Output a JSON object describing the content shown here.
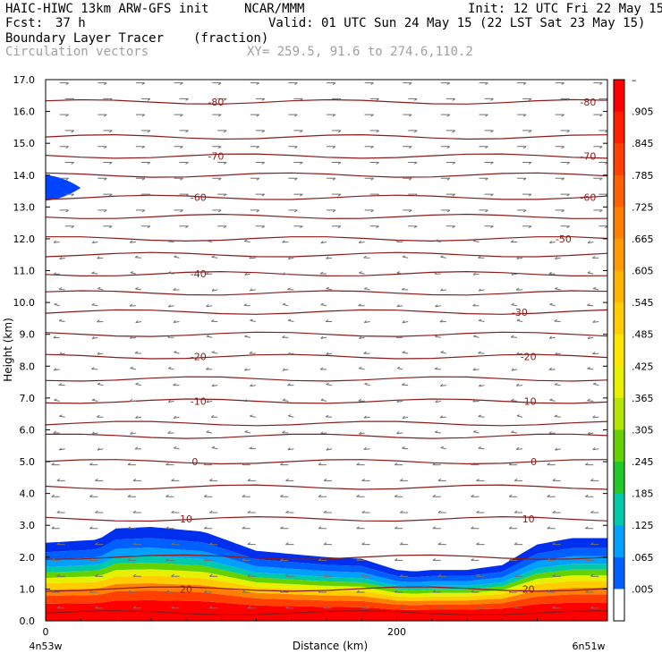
{
  "header": {
    "model": "HAIC-HIWC 13km ARW-GFS init",
    "org": "NCAR/MMM",
    "init": "Init: 12 UTC Fri 22 May 15",
    "fcst_label": "Fcst:",
    "fcst_value": "37 h",
    "valid": "Valid: 01 UTC Sun 24 May 15 (22 LST Sat 23 May 15)",
    "field": "Boundary Layer Tracer",
    "units": "(fraction)",
    "vectors": "Circulation vectors",
    "xy": "XY= 259.5, 91.6 to 274.6,110.2"
  },
  "chart_data": {
    "type": "area",
    "title": "Boundary Layer Tracer",
    "xlabel": "Distance (km)",
    "ylabel": "Height (km)",
    "ylim": [
      0,
      17
    ],
    "xlim": [
      0,
      320
    ],
    "y_ticks": [
      "0.0",
      "1.0",
      "2.0",
      "3.0",
      "4.0",
      "5.0",
      "6.0",
      "7.0",
      "8.0",
      "9.0",
      "10.0",
      "11.0",
      "12.0",
      "13.0",
      "14.0",
      "15.0",
      "16.0",
      "17.0"
    ],
    "x_ticks": [
      {
        "value": 0,
        "label": "0"
      },
      {
        "value": 200,
        "label": "200"
      }
    ],
    "x_end_labels": {
      "left": "4n53w",
      "right": "6n51w"
    },
    "tracer_top": {
      "x": [
        0,
        30,
        40,
        60,
        90,
        100,
        120,
        140,
        160,
        180,
        200,
        210,
        220,
        240,
        260,
        280,
        300,
        320
      ],
      "top": [
        2.45,
        2.55,
        2.9,
        2.95,
        2.8,
        2.6,
        2.2,
        2.1,
        2.0,
        1.95,
        1.6,
        1.55,
        1.6,
        1.6,
        1.75,
        2.4,
        2.6,
        2.6
      ]
    },
    "tracer_blob": {
      "x_range": [
        0,
        20
      ],
      "y_center": 13.6,
      "half_height": 0.4
    },
    "colorbar": {
      "labels": [
        "–",
        ".905",
        ".845",
        ".785",
        ".725",
        ".665",
        ".605",
        ".545",
        ".485",
        ".425",
        ".365",
        ".305",
        ".245",
        ".185",
        ".125",
        ".065",
        ".005"
      ],
      "colors": [
        "#ff0000",
        "#ff2000",
        "#ff4000",
        "#ff6000",
        "#ff8000",
        "#ff9a00",
        "#ffb400",
        "#ffcc00",
        "#ffe600",
        "#e6f000",
        "#b4e600",
        "#64d200",
        "#20c828",
        "#00c8aa",
        "#00a0ff",
        "#0060ff",
        "#ffffff"
      ]
    },
    "contours": {
      "color": "#8b1a1a",
      "labeled": [
        {
          "value": "-80",
          "y": 16.3,
          "label_x": [
            97,
            309
          ]
        },
        {
          "value": "-70",
          "y": 14.6,
          "label_x": [
            97,
            309
          ]
        },
        {
          "value": "-60",
          "y": 13.3,
          "label_x": [
            87,
            309
          ]
        },
        {
          "value": "-50",
          "y": 12.0,
          "label_x": [
            295
          ]
        },
        {
          "value": "-40",
          "y": 10.9,
          "label_x": [
            87
          ]
        },
        {
          "value": "-30",
          "y": 9.7,
          "label_x": [
            270
          ]
        },
        {
          "value": "-20",
          "y": 8.3,
          "label_x": [
            87,
            275
          ]
        },
        {
          "value": "-10",
          "y": 6.9,
          "label_x": [
            87,
            275
          ]
        },
        {
          "value": "0",
          "y": 5.0,
          "label_x": [
            85,
            278
          ]
        },
        {
          "value": "10",
          "y": 3.2,
          "label_x": [
            80,
            275
          ]
        },
        {
          "value": "20",
          "y": 1.0,
          "label_x": [
            80,
            275
          ]
        }
      ],
      "unlabeled_y": [
        15.2,
        14.0,
        12.7,
        11.5,
        10.3,
        9.0,
        7.6,
        6.2,
        5.8,
        4.2,
        2.0,
        0.25
      ]
    },
    "grid": false
  }
}
